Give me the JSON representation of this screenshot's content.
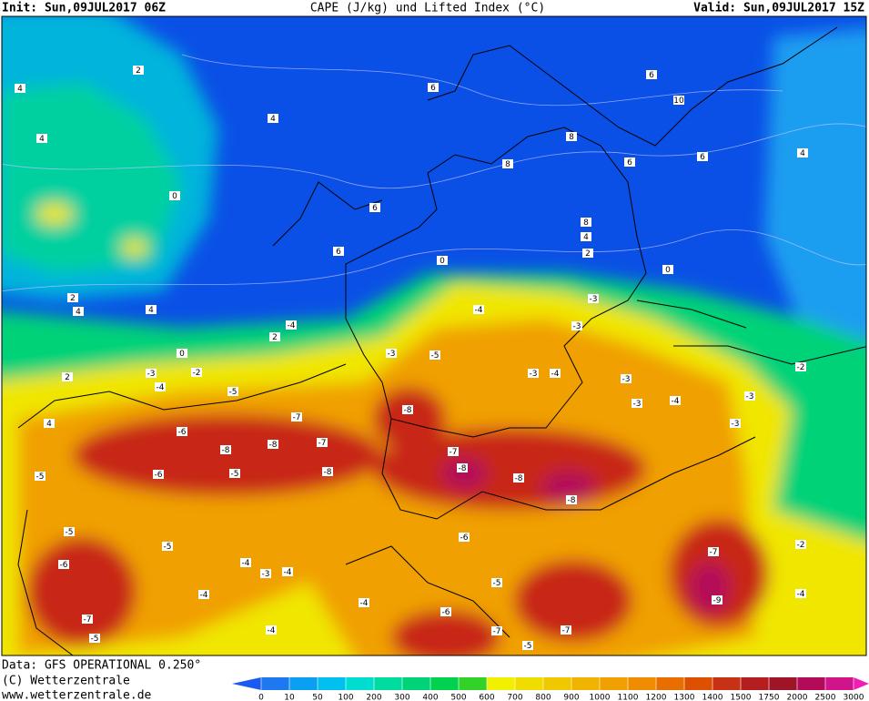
{
  "header": {
    "init": "Init: Sun,09JUL2017 06Z",
    "title": "CAPE (J/kg) und Lifted Index (°C)",
    "valid": "Valid: Sun,09JUL2017 15Z"
  },
  "footer": {
    "data": "Data: GFS OPERATIONAL 0.250°",
    "copyright": "(C) Wetterzentrale",
    "url": "www.wetterzentrale.de"
  },
  "contour_labels": [
    2,
    4,
    4,
    4,
    6,
    6,
    10,
    8,
    8,
    6,
    6,
    4,
    0,
    6,
    6,
    8,
    4,
    2,
    0,
    0,
    2,
    4,
    4,
    -4,
    2,
    0,
    2,
    4,
    -3,
    -2,
    -4,
    -5,
    -6,
    -7,
    -8,
    -8,
    -7,
    -5,
    -6,
    -5,
    -8,
    -7,
    -8,
    -8,
    -8,
    -5,
    -5,
    -6,
    -7,
    -5,
    -4,
    -3,
    -4,
    -4,
    -4,
    -4,
    -6,
    -7,
    -7,
    -7,
    -9,
    -5,
    -2,
    -4,
    -3,
    -2,
    -4,
    -3,
    -3,
    -4,
    -3,
    -3,
    -3,
    -4,
    -3,
    -8,
    -3,
    -5,
    -5,
    -6
  ],
  "colorbar": {
    "ticks": [
      0,
      10,
      50,
      100,
      200,
      300,
      400,
      500,
      600,
      700,
      800,
      900,
      1000,
      1100,
      1200,
      1300,
      1400,
      1500,
      1750,
      2000,
      2500,
      3000
    ],
    "colors": [
      "#1a5af0",
      "#1e78f0",
      "#0a9ff0",
      "#00c0f0",
      "#00dcd0",
      "#00dca0",
      "#00d278",
      "#00d250",
      "#32d228",
      "#f0f000",
      "#f0dc00",
      "#f0c800",
      "#f0b400",
      "#f0a000",
      "#f08c00",
      "#e86e00",
      "#dc5000",
      "#c83214",
      "#b41e1e",
      "#a01428",
      "#b40a5a",
      "#d2148c",
      "#f01eb4"
    ]
  }
}
